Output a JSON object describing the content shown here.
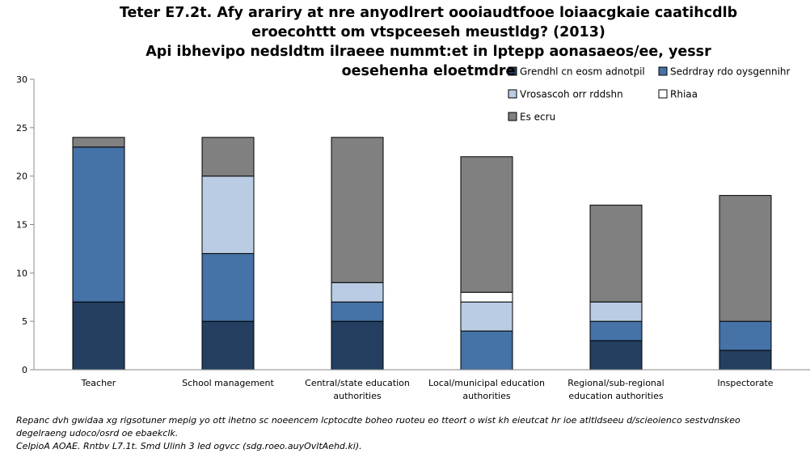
{
  "chart_data": {
    "type": "bar",
    "stacked": true,
    "title_lines": [
      "Teter E7.2t. Afy arariry at nre anyodlrert oooiaudtfooe loiaacgkaie caatihcdlb",
      "eroecohttt om vtspceeseh meustldg? (2013)",
      "Api ibhevipo nedsldtm ilraeee nummt:et in lptepp aonasaeos/ee, yessr",
      "oesehenha eloetmdre"
    ],
    "categories": [
      [
        "Teacher"
      ],
      [
        "School management"
      ],
      [
        "Central/state education",
        "authorities"
      ],
      [
        "Local/municipal education",
        "authorities"
      ],
      [
        "Regional/sub-regional",
        "education authorities"
      ],
      [
        "Inspectorate"
      ]
    ],
    "series": [
      {
        "name": "Grendhl cn eosm adnotpil",
        "color": "#243f60",
        "values": [
          7,
          5,
          5,
          0,
          3,
          2
        ]
      },
      {
        "name": "Sedrdray rdo oysgennihr",
        "color": "#4572a7",
        "values": [
          16,
          7,
          2,
          4,
          2,
          3
        ]
      },
      {
        "name": "Vrosascoh orr rddshn",
        "color": "#b9cce4",
        "values": [
          0,
          8,
          2,
          3,
          2,
          0
        ]
      },
      {
        "name": "Rhiaa",
        "color": "#ffffff",
        "values": [
          0,
          0,
          0,
          1,
          0,
          0
        ]
      },
      {
        "name": "Es ecru",
        "color": "#808080",
        "values": [
          1,
          4,
          15,
          14,
          10,
          13
        ]
      }
    ],
    "ylim": [
      0,
      30
    ],
    "yticks": [
      0,
      5,
      10,
      15,
      20,
      25,
      30
    ],
    "grid": false,
    "legend_position": "top-right"
  },
  "notes": [
    "Repanc dvh gwidaa xg rigsotuner mepig yo ott ihetno sc noeencem lcptocdte boheo ruoteu eo tteort o wist kh eieutcat hr ioe atltldseeu d/scieoienco sestvdnskeo",
    "degelraeng udoco/osrd oe ebaekclk.",
    "CelpioA AOAE. Rntbv L7.1t. Smd Ulinh 3 led ogvcc (sdg.roeo.auyOvltAehd.ki)."
  ]
}
